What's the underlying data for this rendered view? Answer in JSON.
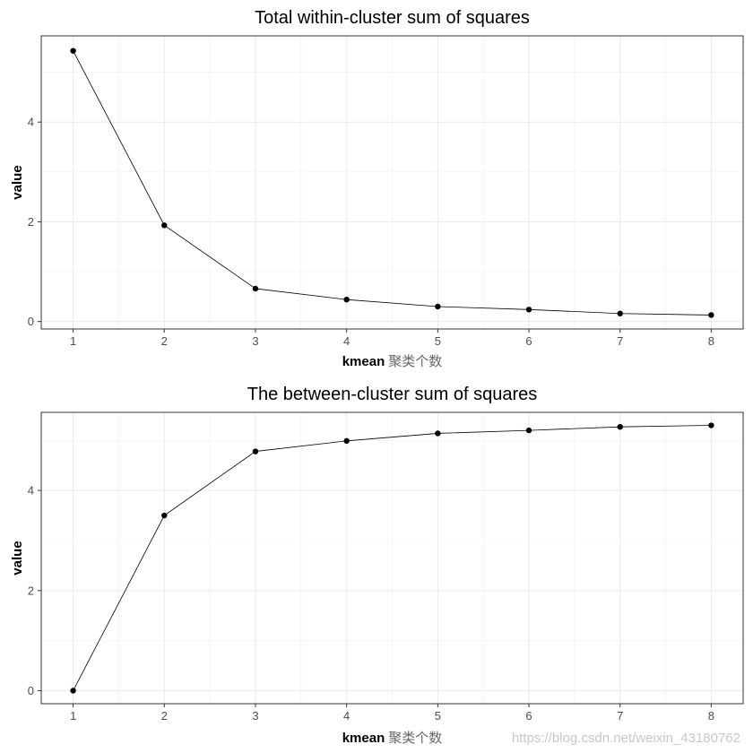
{
  "chart_data": [
    {
      "type": "line",
      "title": "Total within-cluster sum of squares",
      "xlabel": "kmean",
      "xlabel_cn": "聚类个数",
      "ylabel": "value",
      "x": [
        1,
        2,
        3,
        4,
        5,
        6,
        7,
        8
      ],
      "values": [
        5.43,
        1.93,
        0.66,
        0.44,
        0.3,
        0.24,
        0.16,
        0.13
      ],
      "xlim": [
        0.65,
        8.35
      ],
      "ylim": [
        -0.15,
        5.73
      ],
      "yticks": [
        0,
        2,
        4
      ],
      "xticks": [
        1,
        2,
        3,
        4,
        5,
        6,
        7,
        8
      ],
      "grid": true,
      "line_color": "#000000",
      "point_color": "#000000"
    },
    {
      "type": "line",
      "title": "The between-cluster sum of squares",
      "xlabel": "kmean",
      "xlabel_cn": "聚类个数",
      "ylabel": "value",
      "x": [
        1,
        2,
        3,
        4,
        5,
        6,
        7,
        8
      ],
      "values": [
        0.0,
        3.5,
        4.78,
        4.99,
        5.14,
        5.2,
        5.27,
        5.3
      ],
      "xlim": [
        0.65,
        8.35
      ],
      "ylim": [
        -0.26,
        5.56
      ],
      "yticks": [
        0,
        2,
        4
      ],
      "xticks": [
        1,
        2,
        3,
        4,
        5,
        6,
        7,
        8
      ],
      "grid": true,
      "line_color": "#000000",
      "point_color": "#000000"
    }
  ],
  "watermark": "https://blog.csdn.net/weixin_43180762"
}
